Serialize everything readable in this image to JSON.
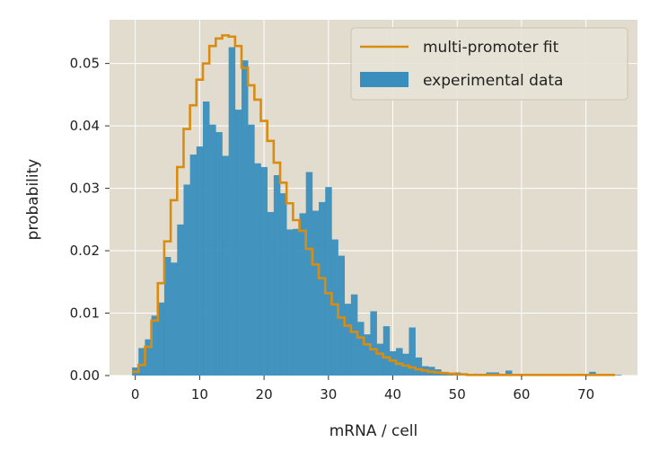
{
  "chart_data": {
    "type": "bar",
    "xlabel": "mRNA / cell",
    "ylabel": "probability",
    "xlim": [
      -4,
      78
    ],
    "ylim": [
      0,
      0.057
    ],
    "xticks": [
      0,
      10,
      20,
      30,
      40,
      50,
      60,
      70
    ],
    "yticks": [
      0.0,
      0.01,
      0.02,
      0.03,
      0.04,
      0.05
    ],
    "xtick_labels": [
      "0",
      "10",
      "20",
      "30",
      "40",
      "50",
      "60",
      "70"
    ],
    "ytick_labels": [
      "0.00",
      "0.01",
      "0.02",
      "0.03",
      "0.04",
      "0.05"
    ],
    "grid": true,
    "legend_position": "top-right",
    "legend": [
      "multi-promoter fit",
      "experimental data"
    ],
    "colors": {
      "background": "#e2dccf",
      "grid": "#ffffff",
      "bars": "#3a8ebe",
      "fit": "#d98c10",
      "legend_bg": "#e8e2d6",
      "legend_border": "#cfc8b8"
    },
    "series": [
      {
        "name": "experimental data",
        "type": "bar",
        "x": [
          0,
          1,
          2,
          3,
          4,
          5,
          6,
          7,
          8,
          9,
          10,
          11,
          12,
          13,
          14,
          15,
          16,
          17,
          18,
          19,
          20,
          21,
          22,
          23,
          24,
          25,
          26,
          27,
          28,
          29,
          30,
          31,
          32,
          33,
          34,
          35,
          36,
          37,
          38,
          39,
          40,
          41,
          42,
          43,
          44,
          45,
          46,
          47,
          48,
          49,
          50,
          51,
          52,
          53,
          54,
          55,
          56,
          57,
          58,
          59,
          60,
          61,
          62,
          63,
          64,
          65,
          66,
          67,
          68,
          69,
          70,
          71,
          72,
          73,
          74,
          75
        ],
        "values": [
          0.0013,
          0.0044,
          0.0058,
          0.0096,
          0.0117,
          0.019,
          0.0181,
          0.0242,
          0.0306,
          0.0354,
          0.0367,
          0.0439,
          0.0402,
          0.039,
          0.0352,
          0.0526,
          0.0426,
          0.0505,
          0.0402,
          0.034,
          0.0334,
          0.0262,
          0.0321,
          0.0292,
          0.0234,
          0.0235,
          0.026,
          0.0326,
          0.0264,
          0.0278,
          0.0302,
          0.0218,
          0.0192,
          0.0115,
          0.013,
          0.0086,
          0.0066,
          0.0103,
          0.0051,
          0.0079,
          0.0039,
          0.0044,
          0.0035,
          0.0077,
          0.0029,
          0.0015,
          0.0014,
          0.001,
          0.0004,
          0.0003,
          0.0005,
          0.0002,
          0.0002,
          0.0003,
          0.0002,
          0.0005,
          0.0005,
          0.0002,
          0.0008,
          0.0001,
          0.0001,
          0.0001,
          0.0001,
          0.0001,
          0.0001,
          0.0001,
          0.0001,
          0.0001,
          0.0001,
          0.0001,
          0.0001,
          0.0006,
          0.0001,
          0.0001,
          0.0001,
          0.0001
        ]
      },
      {
        "name": "multi-promoter fit",
        "type": "step",
        "x": [
          0,
          1,
          2,
          3,
          4,
          5,
          6,
          7,
          8,
          9,
          10,
          11,
          12,
          13,
          14,
          15,
          16,
          17,
          18,
          19,
          20,
          21,
          22,
          23,
          24,
          25,
          26,
          27,
          28,
          29,
          30,
          31,
          32,
          33,
          34,
          35,
          36,
          37,
          38,
          39,
          40,
          41,
          42,
          43,
          44,
          45,
          46,
          47,
          48,
          49,
          50,
          51,
          52,
          53,
          54,
          55,
          56,
          57,
          58,
          59,
          60,
          61,
          62,
          63,
          64,
          65,
          66,
          67,
          68,
          69,
          70,
          71,
          72,
          73,
          74
        ],
        "values": [
          0.0006,
          0.0017,
          0.0046,
          0.0088,
          0.0148,
          0.0215,
          0.0281,
          0.0334,
          0.0395,
          0.0433,
          0.0474,
          0.05,
          0.0528,
          0.054,
          0.0545,
          0.0543,
          0.0528,
          0.0493,
          0.0465,
          0.0442,
          0.0408,
          0.0376,
          0.0341,
          0.0309,
          0.0276,
          0.0249,
          0.0232,
          0.0203,
          0.0178,
          0.0156,
          0.0132,
          0.0114,
          0.0093,
          0.008,
          0.007,
          0.0061,
          0.005,
          0.0042,
          0.0035,
          0.0029,
          0.0024,
          0.0019,
          0.0016,
          0.0013,
          0.001,
          0.0008,
          0.0006,
          0.0005,
          0.0004,
          0.0003,
          0.0002,
          0.0002,
          0.0001,
          0.0001,
          0.0001,
          0.0001,
          0.0001,
          0.0001,
          0.0001,
          0.0001,
          0.0001,
          0.0001,
          0.0001,
          0.0001,
          0.0001,
          0.0001,
          0.0001,
          0.0001,
          0.0001,
          0.0001,
          0.0001,
          0.0001,
          0.0001,
          0.0001,
          0.0001
        ]
      }
    ]
  }
}
